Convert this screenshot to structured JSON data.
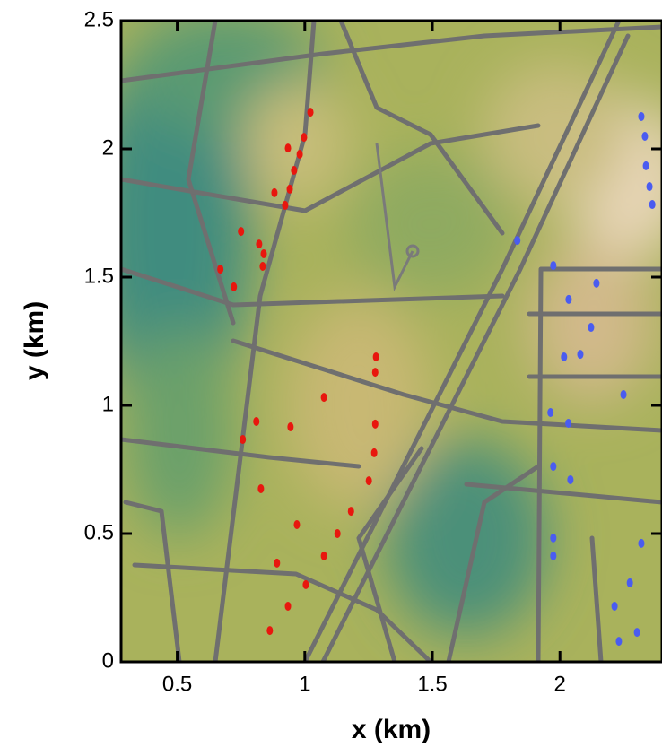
{
  "chart_data": {
    "type": "scatter",
    "xlabel": "x (km)",
    "ylabel": "y (km)",
    "xlim": [
      0.28,
      2.4
    ],
    "ylim": [
      0,
      2.5
    ],
    "xticks": [
      0.5,
      1,
      1.5,
      2
    ],
    "yticks": [
      0,
      0.5,
      1,
      1.5,
      2,
      2.5
    ],
    "series": [
      {
        "color": "#e8170e",
        "x": [
          1.022,
          0.997,
          0.98,
          0.958,
          0.941,
          0.923,
          0.934,
          0.881,
          0.75,
          0.669,
          0.722,
          0.821,
          0.839,
          0.835,
          1.279,
          1.276,
          1.075,
          1.276,
          1.272,
          1.251,
          1.181,
          1.128,
          1.075,
          1.004,
          0.934,
          0.863,
          0.81,
          0.757,
          0.944,
          0.828,
          0.969,
          0.891
        ],
        "values": [
          2.143,
          2.045,
          1.979,
          1.916,
          1.843,
          1.78,
          2.003,
          1.829,
          1.678,
          1.531,
          1.462,
          1.629,
          1.591,
          1.542,
          1.189,
          1.129,
          1.031,
          0.927,
          0.815,
          0.706,
          0.587,
          0.5,
          0.413,
          0.301,
          0.217,
          0.122,
          0.937,
          0.867,
          0.916,
          0.675,
          0.535,
          0.385
        ]
      },
      {
        "color": "#4a5cf0",
        "x": [
          2.319,
          2.333,
          2.337,
          2.351,
          2.362,
          1.833,
          1.974,
          2.034,
          2.143,
          2.122,
          2.08,
          2.016,
          2.249,
          1.963,
          2.033,
          1.974,
          2.041,
          1.974,
          1.974,
          2.319,
          2.274,
          2.214,
          2.302,
          2.231
        ],
        "values": [
          2.126,
          2.049,
          1.934,
          1.853,
          1.783,
          1.643,
          1.545,
          1.413,
          1.476,
          1.304,
          1.199,
          1.189,
          1.042,
          0.972,
          0.93,
          0.762,
          0.71,
          0.413,
          0.483,
          0.462,
          0.308,
          0.217,
          0.115,
          0.08
        ]
      }
    ]
  }
}
